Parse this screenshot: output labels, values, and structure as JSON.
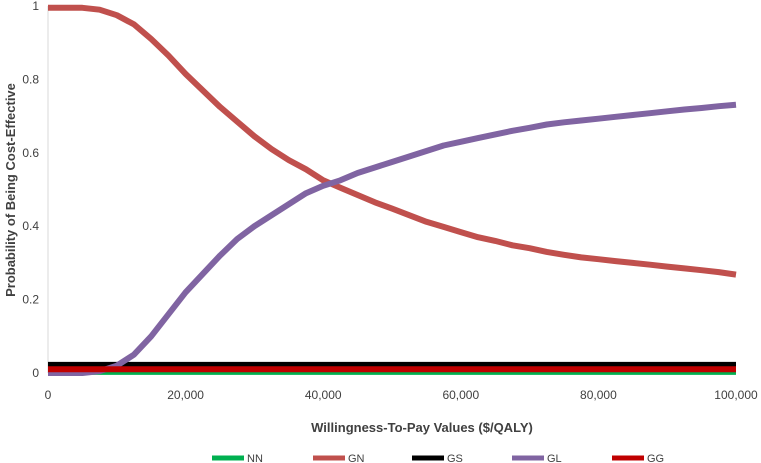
{
  "chart_data": {
    "type": "line",
    "xlabel": "Willingness-To-Pay Values ($/QALY)",
    "ylabel": "Probability of Being Cost-Effective",
    "xlim": [
      0,
      100000
    ],
    "ylim": [
      0,
      1
    ],
    "x_ticks": [
      {
        "value": 0,
        "label": "0"
      },
      {
        "value": 20000,
        "label": "20,000"
      },
      {
        "value": 40000,
        "label": "40,000"
      },
      {
        "value": 60000,
        "label": "60,000"
      },
      {
        "value": 80000,
        "label": "80,000"
      },
      {
        "value": 100000,
        "label": "100,000"
      }
    ],
    "y_ticks": [
      {
        "value": 0,
        "label": "0"
      },
      {
        "value": 0.2,
        "label": "0.2"
      },
      {
        "value": 0.4,
        "label": "0.4"
      },
      {
        "value": 0.6,
        "label": "0.6"
      },
      {
        "value": 0.8,
        "label": "0.8"
      },
      {
        "value": 1,
        "label": "1"
      }
    ],
    "grid": false,
    "legend_position": "bottom",
    "x": [
      0,
      5000,
      7500,
      10000,
      12500,
      15000,
      17500,
      20000,
      22500,
      25000,
      27500,
      30000,
      32500,
      35000,
      37500,
      40000,
      42500,
      45000,
      47500,
      50000,
      52500,
      55000,
      57500,
      60000,
      62500,
      65000,
      67500,
      70000,
      72500,
      75000,
      77500,
      80000,
      82500,
      85000,
      87500,
      90000,
      92500,
      95000,
      97500,
      100000
    ],
    "series": [
      {
        "name": "NN",
        "color": "#00b050",
        "values": [
          0.003,
          0.003,
          0.003,
          0.003,
          0.003,
          0.003,
          0.003,
          0.003,
          0.003,
          0.003,
          0.003,
          0.003,
          0.003,
          0.003,
          0.003,
          0.003,
          0.003,
          0.003,
          0.003,
          0.003,
          0.003,
          0.003,
          0.003,
          0.003,
          0.003,
          0.003,
          0.003,
          0.003,
          0.003,
          0.003,
          0.003,
          0.003,
          0.003,
          0.003,
          0.003,
          0.003,
          0.003,
          0.003,
          0.003,
          0.003
        ]
      },
      {
        "name": "GN",
        "color": "#c0504d",
        "values": [
          0.995,
          0.995,
          0.99,
          0.975,
          0.95,
          0.91,
          0.865,
          0.815,
          0.77,
          0.725,
          0.685,
          0.645,
          0.61,
          0.58,
          0.555,
          0.525,
          0.505,
          0.485,
          0.465,
          0.448,
          0.43,
          0.412,
          0.398,
          0.384,
          0.37,
          0.36,
          0.348,
          0.34,
          0.33,
          0.322,
          0.315,
          0.31,
          0.305,
          0.3,
          0.295,
          0.29,
          0.285,
          0.28,
          0.275,
          0.268
        ]
      },
      {
        "name": "GS",
        "color": "#000000",
        "values": [
          0.022,
          0.022,
          0.022,
          0.022,
          0.022,
          0.022,
          0.022,
          0.022,
          0.022,
          0.022,
          0.022,
          0.022,
          0.022,
          0.022,
          0.022,
          0.022,
          0.022,
          0.022,
          0.022,
          0.022,
          0.022,
          0.022,
          0.022,
          0.022,
          0.022,
          0.022,
          0.022,
          0.022,
          0.022,
          0.022,
          0.022,
          0.022,
          0.022,
          0.022,
          0.022,
          0.022,
          0.022,
          0.022,
          0.022,
          0.022
        ]
      },
      {
        "name": "GL",
        "color": "#8064a2",
        "values": [
          0.0,
          0.0,
          0.005,
          0.02,
          0.05,
          0.1,
          0.16,
          0.22,
          0.27,
          0.32,
          0.365,
          0.4,
          0.43,
          0.46,
          0.49,
          0.51,
          0.525,
          0.545,
          0.56,
          0.575,
          0.59,
          0.605,
          0.62,
          0.63,
          0.64,
          0.65,
          0.66,
          0.668,
          0.677,
          0.683,
          0.688,
          0.693,
          0.698,
          0.703,
          0.708,
          0.713,
          0.718,
          0.722,
          0.727,
          0.731
        ]
      },
      {
        "name": "GG",
        "color": "#c00000",
        "values": [
          0.01,
          0.01,
          0.01,
          0.01,
          0.01,
          0.01,
          0.01,
          0.01,
          0.01,
          0.01,
          0.01,
          0.01,
          0.01,
          0.01,
          0.01,
          0.01,
          0.01,
          0.01,
          0.01,
          0.01,
          0.01,
          0.01,
          0.01,
          0.01,
          0.01,
          0.01,
          0.01,
          0.01,
          0.01,
          0.01,
          0.01,
          0.01,
          0.01,
          0.01,
          0.01,
          0.01,
          0.01,
          0.01,
          0.01,
          0.01
        ]
      }
    ]
  }
}
